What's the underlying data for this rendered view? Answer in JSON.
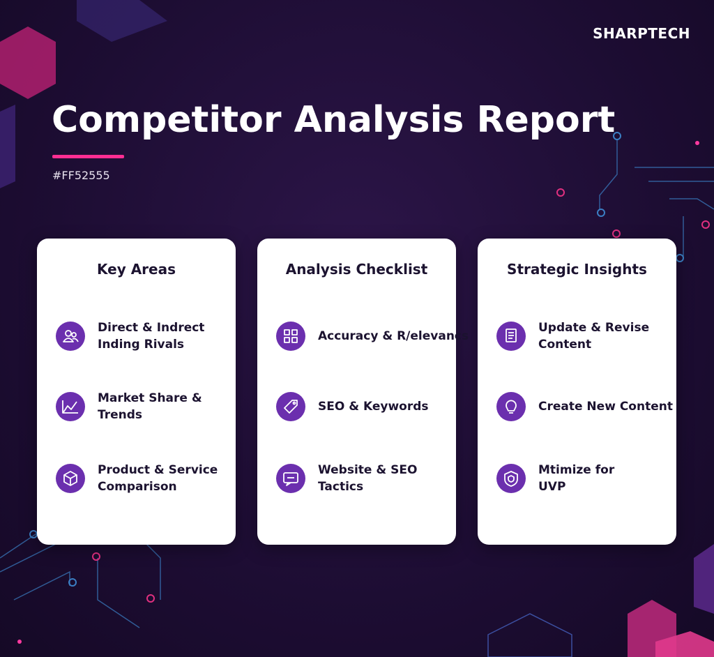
{
  "brand": "SHARPTECH",
  "header": {
    "title": "Competitor Analysis Report",
    "subtitle": "#FF52555"
  },
  "cards": [
    {
      "title": "Key Areas",
      "items": [
        {
          "lines": [
            "Direct & Indrect",
            "Inding Rivals"
          ]
        },
        {
          "lines": [
            "Market Share &",
            "Trends"
          ]
        },
        {
          "lines": [
            "Product & Service",
            "Comparison"
          ]
        }
      ]
    },
    {
      "title": "Analysis Checklist",
      "items": [
        {
          "lines": [
            "Accuracy & R/elevancs"
          ]
        },
        {
          "lines": [
            "SEO & Keywords"
          ]
        },
        {
          "lines": [
            "Website & SEO",
            "Tactics"
          ]
        }
      ]
    },
    {
      "title": "Strategic Insights",
      "items": [
        {
          "lines": [
            "Update & Revise",
            "Content"
          ]
        },
        {
          "lines": [
            "Create New Content"
          ]
        },
        {
          "lines": [
            "Mtimize for",
            "UVP"
          ]
        }
      ]
    }
  ]
}
